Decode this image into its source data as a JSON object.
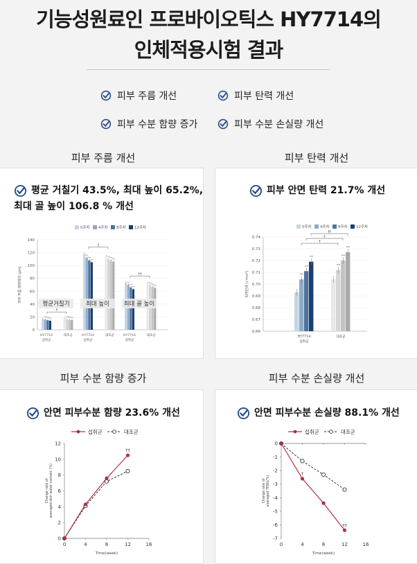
{
  "header": {
    "line1": "기능성원료인 프로바이오틱스 HY7714의",
    "line2": "인체적용시험 결과"
  },
  "benefits": [
    "피부 주름 개선",
    "피부 탄력 개선",
    "피부 수분 함량 증가",
    "피부 수분 손실량 개선"
  ],
  "sections": {
    "wrinkle": {
      "title": "피부 주름 개선",
      "headline1": "평균 거칠기 43.5%, 최대 높이 65.2%,",
      "headline2": "최대 골 높이 106.8 % 개선"
    },
    "elasticity": {
      "title": "피부 탄력 개선",
      "headline": "피부 안면 탄력 21.7% 개선"
    },
    "hydration": {
      "title": "피부 수분 함량 증가",
      "headline": "안면 피부수분 함량 23.6% 개선"
    },
    "tewl": {
      "title": "피부 수분 손실량 개선",
      "headline": "안면 피부수분 손실량 88.1% 개선"
    }
  },
  "colors": {
    "week0": "#c5d5e4",
    "week4": "#8faac8",
    "week8": "#4f739e",
    "week12": "#1a3f6f",
    "ctrl0": "#e8e8e8",
    "ctrl4": "#d6d6d6",
    "ctrl8": "#c3c3c3",
    "ctrl12": "#aaaaaa",
    "treat_line": "#b03040",
    "check": "#2a4d8a"
  },
  "chart_data": [
    {
      "type": "bar",
      "id": "wrinkle",
      "legend": [
        "0주차",
        "4주차",
        "8주차",
        "12주차"
      ],
      "ylabel": "피부 주름 파라미터 (μm)",
      "ylim": [
        0,
        140
      ],
      "yticks": [
        0,
        20,
        40,
        60,
        80,
        100,
        120,
        140
      ],
      "groups": [
        "평균거칠기",
        "최대 높이",
        "최대 골 높이"
      ],
      "subgroup_labels": [
        [
          "HY7714",
          "섭취군"
        ],
        [
          "대조군"
        ]
      ],
      "series": [
        {
          "name": "0주차",
          "hy": [
            17,
            118,
            73
          ],
          "ctrl": [
            17,
            115,
            72
          ]
        },
        {
          "name": "4주차",
          "hy": [
            16,
            112,
            70
          ],
          "ctrl": [
            16,
            110,
            69
          ]
        },
        {
          "name": "8주차",
          "hy": [
            15,
            108,
            66
          ],
          "ctrl": [
            15.5,
            108,
            67
          ]
        },
        {
          "name": "12주차",
          "hy": [
            14,
            105,
            63
          ],
          "ctrl": [
            15,
            106,
            65
          ]
        }
      ],
      "sig": [
        "†",
        "†",
        "††"
      ],
      "stars": "***"
    },
    {
      "type": "bar",
      "id": "elasticity",
      "legend": [
        "0주차",
        "4주차",
        "8주차",
        "12주차"
      ],
      "ylabel": "피부탄력 (√mm²)",
      "ylim": [
        0.66,
        0.74
      ],
      "yticks": [
        0.66,
        0.67,
        0.68,
        0.69,
        0.7,
        0.71,
        0.72,
        0.73,
        0.74
      ],
      "groups": [
        [
          "HY7714",
          "섭취군"
        ],
        [
          "대조군"
        ]
      ],
      "series": [
        {
          "name": "0주차",
          "values": [
            0.693,
            0.704
          ]
        },
        {
          "name": "4주차",
          "values": [
            0.704,
            0.712
          ]
        },
        {
          "name": "8주차",
          "values": [
            0.711,
            0.72
          ]
        },
        {
          "name": "12주차",
          "values": [
            0.719,
            0.727
          ]
        }
      ],
      "sig": [
        "†",
        "†",
        "††"
      ],
      "stars": "***"
    },
    {
      "type": "line",
      "id": "hydration",
      "legend": [
        "섭취군",
        "대조군"
      ],
      "ylabel1": "Change rate of",
      "ylabel2": "averaged skin water content (%)",
      "xlabel": "Time(week)",
      "xlim": [
        0,
        16
      ],
      "xticks": [
        0,
        4,
        8,
        12,
        16
      ],
      "ylim": [
        0,
        12
      ],
      "yticks": [
        0,
        2,
        4,
        6,
        8,
        10,
        12
      ],
      "x": [
        0,
        4,
        8,
        12
      ],
      "series": [
        {
          "name": "섭취군",
          "values": [
            0,
            4.3,
            7.6,
            10.5
          ]
        },
        {
          "name": "대조군",
          "values": [
            0,
            4.1,
            7.2,
            8.5
          ]
        }
      ],
      "annotations": [
        {
          "x": 12,
          "y": 10.5,
          "text": "††"
        }
      ]
    },
    {
      "type": "line",
      "id": "tewl",
      "legend": [
        "섭취군",
        "대조군"
      ],
      "ylabel1": "Change rate of",
      "ylabel2": "averaged TEWL(%)",
      "xlabel": "Time(week)",
      "xlim": [
        0,
        16
      ],
      "xticks": [
        0,
        4,
        8,
        12,
        16
      ],
      "ylim": [
        -7,
        0
      ],
      "yticks": [
        0,
        -1,
        -2,
        -3,
        -4,
        -5,
        -6,
        -7
      ],
      "x": [
        0,
        4,
        8,
        12
      ],
      "series": [
        {
          "name": "섭취군",
          "values": [
            0,
            -2.6,
            -4.4,
            -6.4
          ]
        },
        {
          "name": "대조군",
          "values": [
            0,
            -1.3,
            -2.3,
            -3.4
          ]
        }
      ],
      "annotations": [
        {
          "x": 4,
          "y": -2.6,
          "text": "†"
        },
        {
          "x": 12,
          "y": -6.4,
          "text": "††"
        }
      ]
    }
  ]
}
